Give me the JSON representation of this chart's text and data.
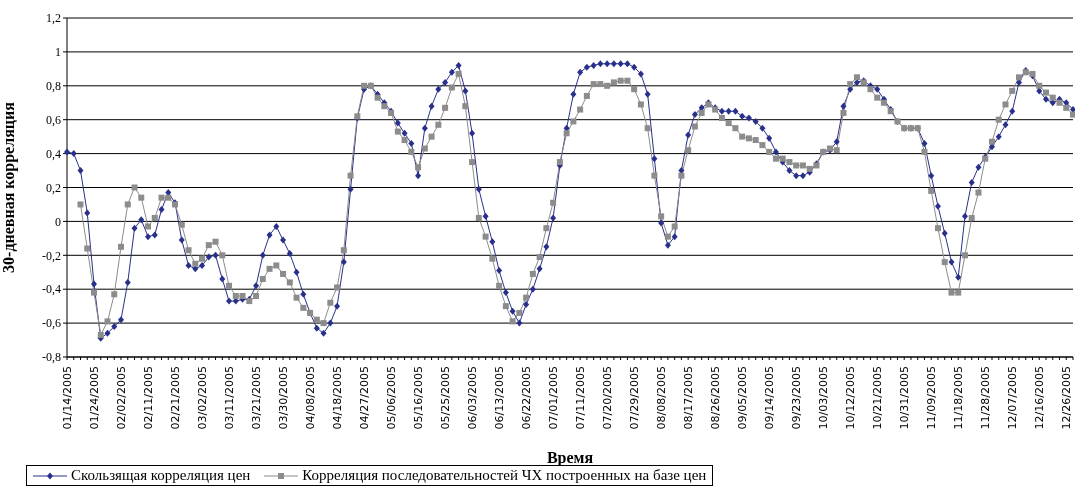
{
  "chart_data": {
    "type": "line",
    "xlabel": "Время",
    "ylabel": "30-дневная корреляция",
    "categories": [
      "01/14/2005",
      null,
      null,
      null,
      "01/24/2005",
      null,
      null,
      null,
      "02/02/2005",
      null,
      null,
      null,
      "02/11/2005",
      null,
      null,
      null,
      "02/21/2005",
      null,
      null,
      null,
      "03/02/2005",
      null,
      null,
      null,
      "03/11/2005",
      null,
      null,
      null,
      "03/21/2005",
      null,
      null,
      null,
      "03/30/2005",
      null,
      null,
      null,
      "04/08/2005",
      null,
      null,
      null,
      "04/18/2005",
      null,
      null,
      null,
      "04/27/2005",
      null,
      null,
      null,
      "05/06/2005",
      null,
      null,
      null,
      "05/16/2005",
      null,
      null,
      null,
      "05/25/2005",
      null,
      null,
      null,
      "06/03/2005",
      null,
      null,
      null,
      "06/13/2005",
      null,
      null,
      null,
      "06/22/2005",
      null,
      null,
      null,
      "07/01/2005",
      null,
      null,
      null,
      "07/11/2005",
      null,
      null,
      null,
      "07/20/2005",
      null,
      null,
      null,
      "07/29/2005",
      null,
      null,
      null,
      "08/08/2005",
      null,
      null,
      null,
      "08/17/2005",
      null,
      null,
      null,
      "08/26/2005",
      null,
      null,
      null,
      "09/05/2005",
      null,
      null,
      null,
      "09/14/2005",
      null,
      null,
      null,
      "09/23/2005",
      null,
      null,
      null,
      "10/03/2005",
      null,
      null,
      null,
      "10/12/2005",
      null,
      null,
      null,
      "10/21/2005",
      null,
      null,
      null,
      "10/31/2005",
      null,
      null,
      null,
      "11/09/2005",
      null,
      null,
      null,
      "11/18/2005",
      null,
      null,
      null,
      "11/28/2005",
      null,
      null,
      null,
      "12/07/2005",
      null,
      null,
      null,
      "12/16/2005",
      null,
      null,
      null,
      "12/26/2005",
      null
    ],
    "series": [
      {
        "name": "Скользящая корреляция цен",
        "color": "#28308c",
        "marker": "diamond",
        "values": [
          0.41,
          0.4,
          0.3,
          0.05,
          -0.37,
          -0.69,
          -0.66,
          -0.62,
          -0.58,
          -0.36,
          -0.04,
          0.01,
          -0.09,
          -0.08,
          0.07,
          0.17,
          0.11,
          -0.11,
          -0.26,
          -0.28,
          -0.26,
          -0.21,
          -0.2,
          -0.34,
          -0.47,
          -0.47,
          -0.46,
          -0.46,
          -0.38,
          -0.2,
          -0.08,
          -0.03,
          -0.11,
          -0.19,
          -0.3,
          -0.43,
          -0.54,
          -0.63,
          -0.66,
          -0.6,
          -0.5,
          -0.24,
          0.19,
          0.61,
          0.78,
          0.8,
          0.75,
          0.7,
          0.65,
          0.58,
          0.52,
          0.46,
          0.27,
          0.55,
          0.68,
          0.78,
          0.82,
          0.88,
          0.92,
          0.77,
          0.52,
          0.19,
          0.03,
          -0.12,
          -0.29,
          -0.42,
          -0.53,
          -0.6,
          -0.49,
          -0.4,
          -0.28,
          -0.15,
          0.02,
          0.33,
          0.55,
          0.75,
          0.88,
          0.91,
          0.92,
          0.93,
          0.93,
          0.93,
          0.93,
          0.93,
          0.91,
          0.87,
          0.75,
          0.37,
          -0.01,
          -0.14,
          -0.09,
          0.3,
          0.51,
          0.63,
          0.67,
          0.7,
          0.67,
          0.65,
          0.65,
          0.65,
          0.62,
          0.61,
          0.59,
          0.55,
          0.49,
          0.41,
          0.35,
          0.3,
          0.27,
          0.27,
          0.29,
          0.34,
          0.41,
          0.42,
          0.47,
          0.68,
          0.78,
          0.82,
          0.83,
          0.8,
          0.78,
          0.72,
          0.66,
          0.59,
          0.55,
          0.55,
          0.55,
          0.46,
          0.27,
          0.09,
          -0.07,
          -0.24,
          -0.33,
          0.03,
          0.23,
          0.32,
          0.38,
          0.44,
          0.5,
          0.57,
          0.65,
          0.82,
          0.89,
          0.86,
          0.77,
          0.72,
          0.7,
          0.72,
          0.7,
          0.66
        ]
      },
      {
        "name": "Корреляция последовательностей ЧХ построенных на базе цен",
        "color": "#8c8c8c",
        "marker": "square",
        "values": [
          null,
          null,
          0.1,
          -0.16,
          -0.42,
          -0.67,
          -0.59,
          -0.43,
          -0.15,
          0.1,
          0.2,
          0.14,
          -0.03,
          0.02,
          0.14,
          0.14,
          0.1,
          -0.02,
          -0.17,
          -0.25,
          -0.22,
          -0.14,
          -0.12,
          -0.2,
          -0.38,
          -0.44,
          -0.44,
          -0.47,
          -0.44,
          -0.34,
          -0.28,
          -0.26,
          -0.31,
          -0.36,
          -0.45,
          -0.51,
          -0.54,
          -0.58,
          -0.6,
          -0.48,
          -0.39,
          -0.17,
          0.27,
          0.62,
          0.8,
          0.8,
          0.73,
          0.68,
          0.64,
          0.53,
          0.48,
          0.41,
          0.32,
          0.43,
          0.5,
          0.57,
          0.67,
          0.79,
          0.87,
          0.68,
          0.35,
          0.02,
          -0.09,
          -0.22,
          -0.38,
          -0.5,
          -0.59,
          -0.54,
          -0.45,
          -0.31,
          -0.21,
          -0.04,
          0.11,
          0.35,
          0.52,
          0.59,
          0.66,
          0.74,
          0.81,
          0.81,
          0.8,
          0.82,
          0.83,
          0.83,
          0.78,
          0.69,
          0.55,
          0.27,
          0.03,
          -0.09,
          -0.03,
          0.27,
          0.42,
          0.56,
          0.64,
          0.69,
          0.66,
          0.61,
          0.58,
          0.55,
          0.5,
          0.49,
          0.48,
          0.45,
          0.41,
          0.37,
          0.37,
          0.35,
          0.33,
          0.33,
          0.31,
          0.33,
          0.41,
          0.43,
          0.42,
          0.64,
          0.81,
          0.85,
          0.82,
          0.78,
          0.73,
          0.7,
          0.65,
          0.59,
          0.55,
          0.55,
          0.55,
          0.41,
          0.18,
          -0.04,
          -0.24,
          -0.42,
          -0.42,
          -0.2,
          0.02,
          0.17,
          0.37,
          0.47,
          0.6,
          0.69,
          0.77,
          0.85,
          0.88,
          0.87,
          0.8,
          0.76,
          0.73,
          0.7,
          0.67,
          0.63
        ]
      }
    ],
    "ylim": [
      -0.8,
      1.2
    ],
    "yticks": [
      {
        "value": -0.8,
        "label": "-0,8"
      },
      {
        "value": -0.6,
        "label": "-0,6"
      },
      {
        "value": -0.4,
        "label": "-0,4"
      },
      {
        "value": -0.2,
        "label": "-0,2"
      },
      0,
      {
        "value": 0.2,
        "label": "0,2"
      },
      {
        "value": 0.4,
        "label": "0,4"
      },
      {
        "value": 0.6,
        "label": "0,6"
      },
      {
        "value": 0.8,
        "label": "0,8"
      },
      1,
      {
        "value": 1.2,
        "label": "1,2"
      }
    ],
    "grid": "y",
    "legend": "bottom"
  }
}
